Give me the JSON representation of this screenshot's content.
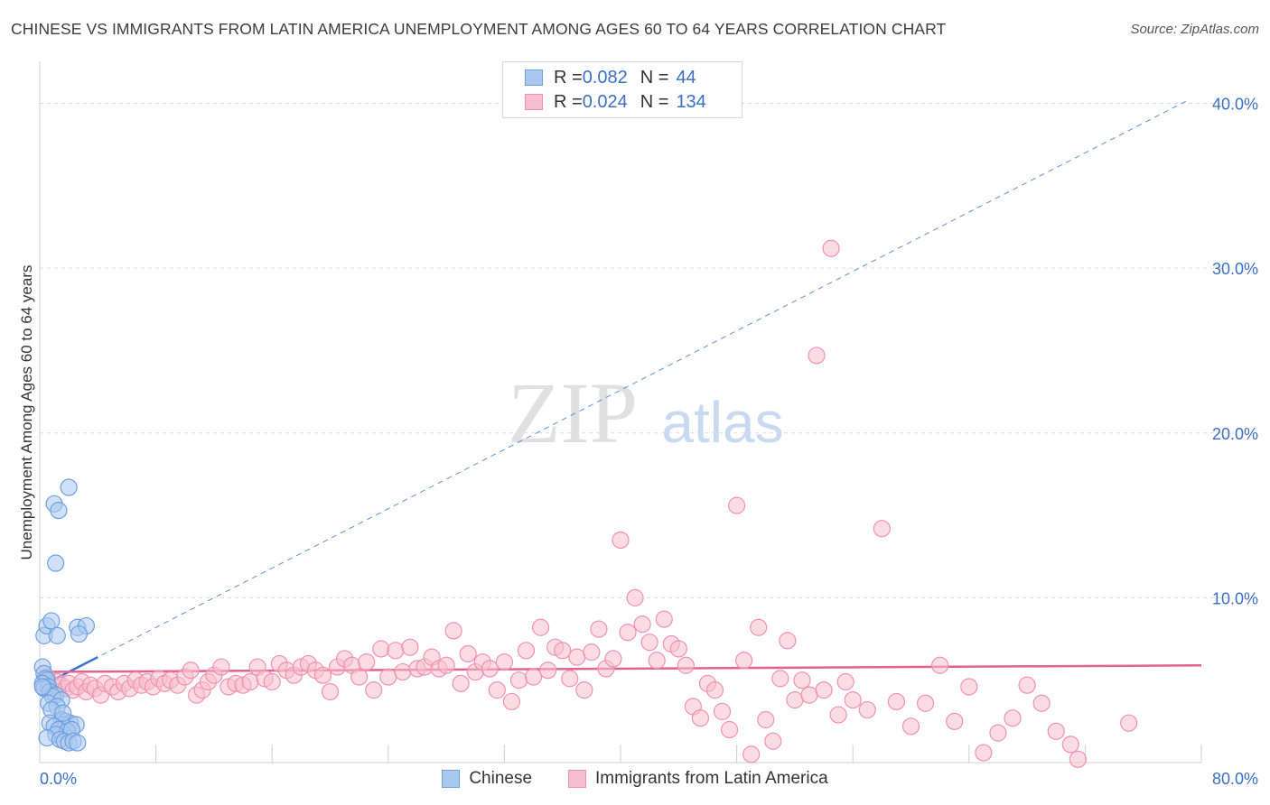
{
  "header": {
    "title": "CHINESE VS IMMIGRANTS FROM LATIN AMERICA UNEMPLOYMENT AMONG AGES 60 TO 64 YEARS CORRELATION CHART",
    "source": "Source: ZipAtlas.com"
  },
  "watermark": {
    "zip": "ZIP",
    "atlas": "atlas"
  },
  "stats": [
    {
      "r_label": "R = ",
      "r_value": "0.082",
      "n_label": "N = ",
      "n_value": "44"
    },
    {
      "r_label": "R = ",
      "r_value": "0.024",
      "n_label": "N = ",
      "n_value": "134"
    }
  ],
  "colors": {
    "chinese_fill": "#a9c8f0",
    "chinese_stroke": "#6f9fdc",
    "chinese_line": "#3a73d0",
    "latin_fill": "#f8bfd0",
    "latin_stroke": "#ee92ae",
    "latin_line": "#e2638d",
    "axis_label": "#3a6fc4",
    "grid": "#dcdcdc"
  },
  "chart_data": {
    "type": "scatter",
    "title": "CHINESE VS IMMIGRANTS FROM LATIN AMERICA UNEMPLOYMENT AMONG AGES 60 TO 64 YEARS CORRELATION CHART",
    "xlabel": "",
    "ylabel": "Unemployment Among Ages 60 to 64 years",
    "xlim": [
      0,
      80
    ],
    "ylim": [
      0,
      42
    ],
    "x_tick_labels": [
      "0.0%",
      "80.0%"
    ],
    "y_ticks": [
      10,
      20,
      30,
      40
    ],
    "y_tick_labels": [
      "10.0%",
      "20.0%",
      "30.0%",
      "40.0%"
    ],
    "grid": true,
    "legend_position": "bottom-center",
    "series": [
      {
        "name": "Chinese",
        "r": 0.082,
        "n": 44,
        "trend": {
          "x": [
            0,
            4
          ],
          "y": [
            4.6,
            6.4
          ]
        },
        "points": [
          [
            0.3,
            7.7
          ],
          [
            0.5,
            8.3
          ],
          [
            0.8,
            8.6
          ],
          [
            1.2,
            7.7
          ],
          [
            2.6,
            8.2
          ],
          [
            3.2,
            8.3
          ],
          [
            2.7,
            7.8
          ],
          [
            1.0,
            15.7
          ],
          [
            1.3,
            15.3
          ],
          [
            1.1,
            12.1
          ],
          [
            2.0,
            16.7
          ],
          [
            0.2,
            5.8
          ],
          [
            0.3,
            5.4
          ],
          [
            0.4,
            5.1
          ],
          [
            0.5,
            5.0
          ],
          [
            0.2,
            4.8
          ],
          [
            0.6,
            4.6
          ],
          [
            0.3,
            4.5
          ],
          [
            0.7,
            4.3
          ],
          [
            1.1,
            4.1
          ],
          [
            0.9,
            4.0
          ],
          [
            1.5,
            3.8
          ],
          [
            0.6,
            3.6
          ],
          [
            1.2,
            3.4
          ],
          [
            0.8,
            3.2
          ],
          [
            1.5,
            2.6
          ],
          [
            1.8,
            2.5
          ],
          [
            2.1,
            2.4
          ],
          [
            1.6,
            2.3
          ],
          [
            2.5,
            2.3
          ],
          [
            0.7,
            2.4
          ],
          [
            1.0,
            2.2
          ],
          [
            1.3,
            2.0
          ],
          [
            1.9,
            1.9
          ],
          [
            2.2,
            2.0
          ],
          [
            1.1,
            1.7
          ],
          [
            0.5,
            1.5
          ],
          [
            1.4,
            1.4
          ],
          [
            1.7,
            1.3
          ],
          [
            2.0,
            1.2
          ],
          [
            2.3,
            1.3
          ],
          [
            2.6,
            1.2
          ],
          [
            0.2,
            4.6
          ],
          [
            1.6,
            3.0
          ]
        ]
      },
      {
        "name": "Immigrants from Latin America",
        "r": 0.024,
        "n": 134,
        "trend": {
          "x": [
            0,
            80
          ],
          "y": [
            5.5,
            5.9
          ]
        },
        "points": [
          [
            0.5,
            5.2
          ],
          [
            0.8,
            4.8
          ],
          [
            1.0,
            4.6
          ],
          [
            1.2,
            4.9
          ],
          [
            1.5,
            4.7
          ],
          [
            1.8,
            4.5
          ],
          [
            2.0,
            4.8
          ],
          [
            2.3,
            4.4
          ],
          [
            2.6,
            4.6
          ],
          [
            2.9,
            4.9
          ],
          [
            3.2,
            4.3
          ],
          [
            3.5,
            4.7
          ],
          [
            3.8,
            4.5
          ],
          [
            4.2,
            4.1
          ],
          [
            4.5,
            4.8
          ],
          [
            5.0,
            4.6
          ],
          [
            5.4,
            4.3
          ],
          [
            5.8,
            4.8
          ],
          [
            6.2,
            4.5
          ],
          [
            6.6,
            5.0
          ],
          [
            7.0,
            4.7
          ],
          [
            7.4,
            4.9
          ],
          [
            7.8,
            4.6
          ],
          [
            8.2,
            5.1
          ],
          [
            8.6,
            4.8
          ],
          [
            9.0,
            5.0
          ],
          [
            9.5,
            4.7
          ],
          [
            10.0,
            5.2
          ],
          [
            10.4,
            5.6
          ],
          [
            10.8,
            4.1
          ],
          [
            11.2,
            4.4
          ],
          [
            11.6,
            4.9
          ],
          [
            12.0,
            5.3
          ],
          [
            12.5,
            5.8
          ],
          [
            13.0,
            4.6
          ],
          [
            13.5,
            4.8
          ],
          [
            14.0,
            4.7
          ],
          [
            14.5,
            4.9
          ],
          [
            15.0,
            5.8
          ],
          [
            15.5,
            5.1
          ],
          [
            16.0,
            4.9
          ],
          [
            16.5,
            6.0
          ],
          [
            17.0,
            5.6
          ],
          [
            17.5,
            5.3
          ],
          [
            18.0,
            5.8
          ],
          [
            18.5,
            6.0
          ],
          [
            19.0,
            5.6
          ],
          [
            19.5,
            5.3
          ],
          [
            20.0,
            4.3
          ],
          [
            20.5,
            5.8
          ],
          [
            21.0,
            6.3
          ],
          [
            21.5,
            5.9
          ],
          [
            22.0,
            5.2
          ],
          [
            22.5,
            6.1
          ],
          [
            23.0,
            4.4
          ],
          [
            23.5,
            6.9
          ],
          [
            24.0,
            5.2
          ],
          [
            24.5,
            6.8
          ],
          [
            25.0,
            5.5
          ],
          [
            25.5,
            7.0
          ],
          [
            26.0,
            5.7
          ],
          [
            26.5,
            5.8
          ],
          [
            27.0,
            6.4
          ],
          [
            27.5,
            5.7
          ],
          [
            28.0,
            5.9
          ],
          [
            28.5,
            8.0
          ],
          [
            29.0,
            4.8
          ],
          [
            29.5,
            6.6
          ],
          [
            30.0,
            5.5
          ],
          [
            30.5,
            6.1
          ],
          [
            31.0,
            5.7
          ],
          [
            31.5,
            4.4
          ],
          [
            32.0,
            6.1
          ],
          [
            32.5,
            3.7
          ],
          [
            33.0,
            5.0
          ],
          [
            33.5,
            6.8
          ],
          [
            34.0,
            5.2
          ],
          [
            34.5,
            8.2
          ],
          [
            35.0,
            5.6
          ],
          [
            35.5,
            7.0
          ],
          [
            36.0,
            6.8
          ],
          [
            36.5,
            5.1
          ],
          [
            37.0,
            6.4
          ],
          [
            37.5,
            4.4
          ],
          [
            38.0,
            6.7
          ],
          [
            38.5,
            8.1
          ],
          [
            39.0,
            5.7
          ],
          [
            39.5,
            6.3
          ],
          [
            40.0,
            13.5
          ],
          [
            40.5,
            7.9
          ],
          [
            41.0,
            10.0
          ],
          [
            41.5,
            8.4
          ],
          [
            42.0,
            7.3
          ],
          [
            42.5,
            6.2
          ],
          [
            43.0,
            8.7
          ],
          [
            43.5,
            7.2
          ],
          [
            44.0,
            6.9
          ],
          [
            44.5,
            5.9
          ],
          [
            45.0,
            3.4
          ],
          [
            45.5,
            2.7
          ],
          [
            46.0,
            4.8
          ],
          [
            46.5,
            4.4
          ],
          [
            47.0,
            3.1
          ],
          [
            47.5,
            2.0
          ],
          [
            48.0,
            15.6
          ],
          [
            48.5,
            6.2
          ],
          [
            49.0,
            0.5
          ],
          [
            49.5,
            8.2
          ],
          [
            50.0,
            2.6
          ],
          [
            50.5,
            1.3
          ],
          [
            51.0,
            5.1
          ],
          [
            51.5,
            7.4
          ],
          [
            52.0,
            3.8
          ],
          [
            52.5,
            5.0
          ],
          [
            53.0,
            4.1
          ],
          [
            53.5,
            24.7
          ],
          [
            54.0,
            4.4
          ],
          [
            54.5,
            31.2
          ],
          [
            55.0,
            2.9
          ],
          [
            55.5,
            4.9
          ],
          [
            56.0,
            3.8
          ],
          [
            57.0,
            3.2
          ],
          [
            58.0,
            14.2
          ],
          [
            59.0,
            3.7
          ],
          [
            60.0,
            2.2
          ],
          [
            61.0,
            3.6
          ],
          [
            62.0,
            5.9
          ],
          [
            63.0,
            2.5
          ],
          [
            64.0,
            4.6
          ],
          [
            65.0,
            0.6
          ],
          [
            66.0,
            1.8
          ],
          [
            67.0,
            2.7
          ],
          [
            68.0,
            4.7
          ],
          [
            69.0,
            3.6
          ],
          [
            70.0,
            1.9
          ],
          [
            71.0,
            1.1
          ],
          [
            71.5,
            0.2
          ],
          [
            75.0,
            2.4
          ]
        ]
      }
    ]
  }
}
